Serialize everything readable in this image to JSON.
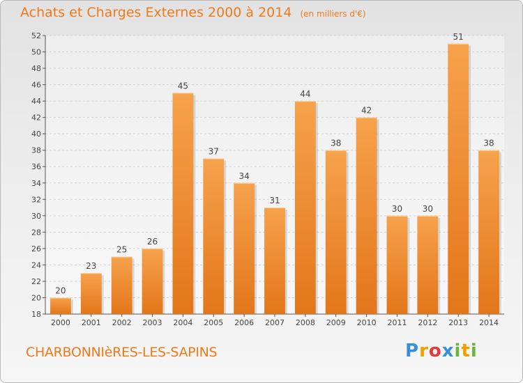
{
  "title": {
    "main": "Achats et Charges Externes 2000 à 2014",
    "unit": "(en milliers d'€)"
  },
  "commune": "CHARBONNIèRES-LES-SAPINS",
  "logo": {
    "text": "Proxiti",
    "letters": [
      {
        "char": "P",
        "color": "#3a8fd6"
      },
      {
        "char": "r",
        "color": "#f0a000"
      },
      {
        "char": "o",
        "color": "#e23a3a"
      },
      {
        "char": "x",
        "color": "#3a8fd6"
      },
      {
        "char": "i",
        "color": "#6cb33f"
      },
      {
        "char": "t",
        "color": "#f0a000"
      },
      {
        "char": "i",
        "color": "#6cb33f"
      }
    ]
  },
  "chart_data": {
    "type": "bar",
    "categories": [
      "2000",
      "2001",
      "2002",
      "2003",
      "2004",
      "2005",
      "2006",
      "2007",
      "2008",
      "2009",
      "2010",
      "2011",
      "2012",
      "2013",
      "2014"
    ],
    "values": [
      20,
      23,
      25,
      26,
      45,
      37,
      34,
      31,
      44,
      38,
      42,
      30,
      30,
      51,
      38
    ],
    "ylim": [
      18,
      52
    ],
    "yticks": [
      18,
      20,
      22,
      24,
      26,
      28,
      30,
      32,
      34,
      36,
      38,
      40,
      42,
      44,
      46,
      48,
      50,
      52
    ],
    "grid": true,
    "bar_color": "#f08a24",
    "xlabel": "",
    "ylabel": ""
  }
}
